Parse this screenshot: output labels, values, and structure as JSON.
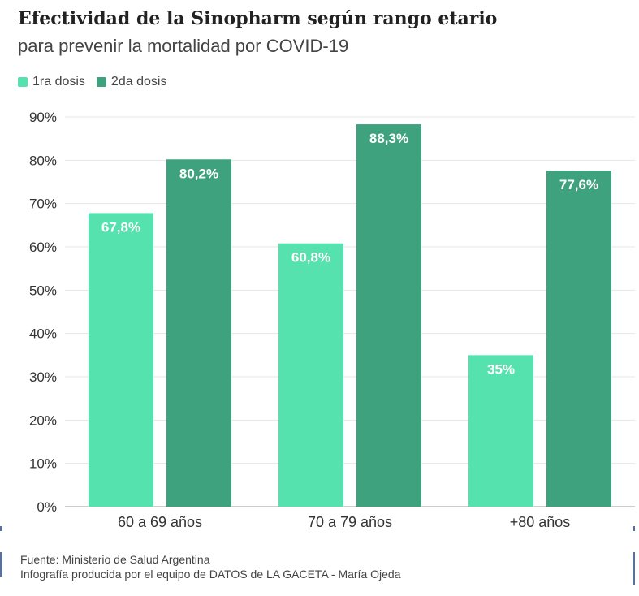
{
  "title": "Efectividad de la Sinopharm según rango etario",
  "subtitle": "para prevenir la mortalidad por COVID-19",
  "legend": [
    {
      "label": "1ra dosis",
      "color": "#56e2ae"
    },
    {
      "label": "2da dosis",
      "color": "#3ea27e"
    }
  ],
  "chart_data": {
    "type": "bar",
    "categories": [
      "60 a 69 años",
      "70 a 79 años",
      "+80 años"
    ],
    "series": [
      {
        "name": "1ra dosis",
        "values": [
          67.8,
          60.8,
          35
        ],
        "labels": [
          "67,8%",
          "60,8%",
          "35%"
        ],
        "color": "#56e2ae"
      },
      {
        "name": "2da dosis",
        "values": [
          80.2,
          88.3,
          77.6
        ],
        "labels": [
          "80,2%",
          "88,3%",
          "77,6%"
        ],
        "color": "#3ea27e"
      }
    ],
    "ylim": [
      0,
      90
    ],
    "yticks": [
      "0%",
      "10%",
      "20%",
      "30%",
      "40%",
      "50%",
      "60%",
      "70%",
      "80%",
      "90%"
    ],
    "grid": true,
    "legend_position": "top-left"
  },
  "footer": {
    "source": "Fuente: Ministerio de Salud Argentina",
    "credit": "Infografía producida por el equipo de DATOS de LA GACETA - María Ojeda"
  }
}
